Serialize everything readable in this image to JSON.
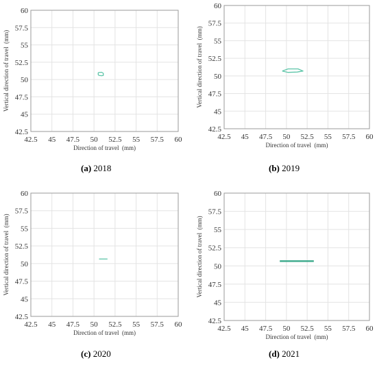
{
  "figure": {
    "panels": [
      {
        "letter": "(a)",
        "year": "2018"
      },
      {
        "letter": "(b)",
        "year": "2019"
      },
      {
        "letter": "(c)",
        "year": "2020"
      },
      {
        "letter": "(d)",
        "year": "2021"
      }
    ]
  },
  "chart_data": [
    {
      "type": "line",
      "xlabel": "Direction of travel  (mm)",
      "ylabel": "Vertical direction of travel  (mm)",
      "xlim": [
        42.5,
        60
      ],
      "ylim": [
        42.5,
        60
      ],
      "xticks": [
        "42.5",
        "45",
        "47.5",
        "50",
        "52.5",
        "55",
        "57.5",
        "60"
      ],
      "yticks": [
        "42.5",
        "45",
        "47.5",
        "50",
        "52.5",
        "55",
        "57.5",
        "60"
      ],
      "grid": true,
      "color": "#5cc5a8",
      "series": [
        {
          "x": [
            50.5,
            50.9,
            51.1,
            51.1,
            50.9,
            50.6,
            50.5,
            50.5
          ],
          "y": [
            51.0,
            51.05,
            50.9,
            50.6,
            50.55,
            50.6,
            50.7,
            51.0
          ]
        }
      ]
    },
    {
      "type": "line",
      "xlabel": "Direction of travel  (mm)",
      "ylabel": "Vertical direction of travel  (mm)",
      "xlim": [
        42.5,
        60
      ],
      "ylim": [
        42.5,
        60
      ],
      "xticks": [
        "42.5",
        "45",
        "47.5",
        "50",
        "52.5",
        "55",
        "57.5",
        "60"
      ],
      "yticks": [
        "42.5",
        "45",
        "47.5",
        "50",
        "52.5",
        "55",
        "57.5",
        "60"
      ],
      "grid": true,
      "color": "#5cc5a8",
      "series": [
        {
          "x": [
            49.5,
            50.2,
            51.4,
            52.0,
            51.3,
            50.2,
            49.5
          ],
          "y": [
            50.7,
            51.0,
            51.0,
            50.7,
            50.55,
            50.5,
            50.7
          ]
        }
      ]
    },
    {
      "type": "line",
      "xlabel": "Direction of travel  (mm)",
      "ylabel": "Vertical direction of travel  (mm)",
      "xlim": [
        42.5,
        60
      ],
      "ylim": [
        42.5,
        60
      ],
      "xticks": [
        "42.5",
        "45",
        "47.5",
        "50",
        "52.5",
        "55",
        "57.5",
        "60"
      ],
      "yticks": [
        "42.5",
        "45",
        "47.5",
        "50",
        "52.5",
        "55",
        "57.5",
        "60"
      ],
      "grid": true,
      "color": "#5cc5a8",
      "series": [
        {
          "x": [
            50.6,
            51.6
          ],
          "y": [
            50.65,
            50.65
          ]
        }
      ]
    },
    {
      "type": "line",
      "xlabel": "Direction of travel  (mm)",
      "ylabel": "Vertical direction of travel  (mm)",
      "xlim": [
        42.5,
        60
      ],
      "ylim": [
        42.5,
        60
      ],
      "xticks": [
        "42.5",
        "45",
        "47.5",
        "50",
        "52.5",
        "55",
        "57.5",
        "60"
      ],
      "yticks": [
        "42.5",
        "45",
        "47.5",
        "50",
        "52.5",
        "55",
        "57.5",
        "60"
      ],
      "grid": true,
      "color": "#3aa88a",
      "series": [
        {
          "x": [
            49.2,
            53.3
          ],
          "y": [
            50.7,
            50.7
          ]
        },
        {
          "x": [
            49.2,
            53.3
          ],
          "y": [
            50.6,
            50.6
          ]
        }
      ]
    }
  ]
}
